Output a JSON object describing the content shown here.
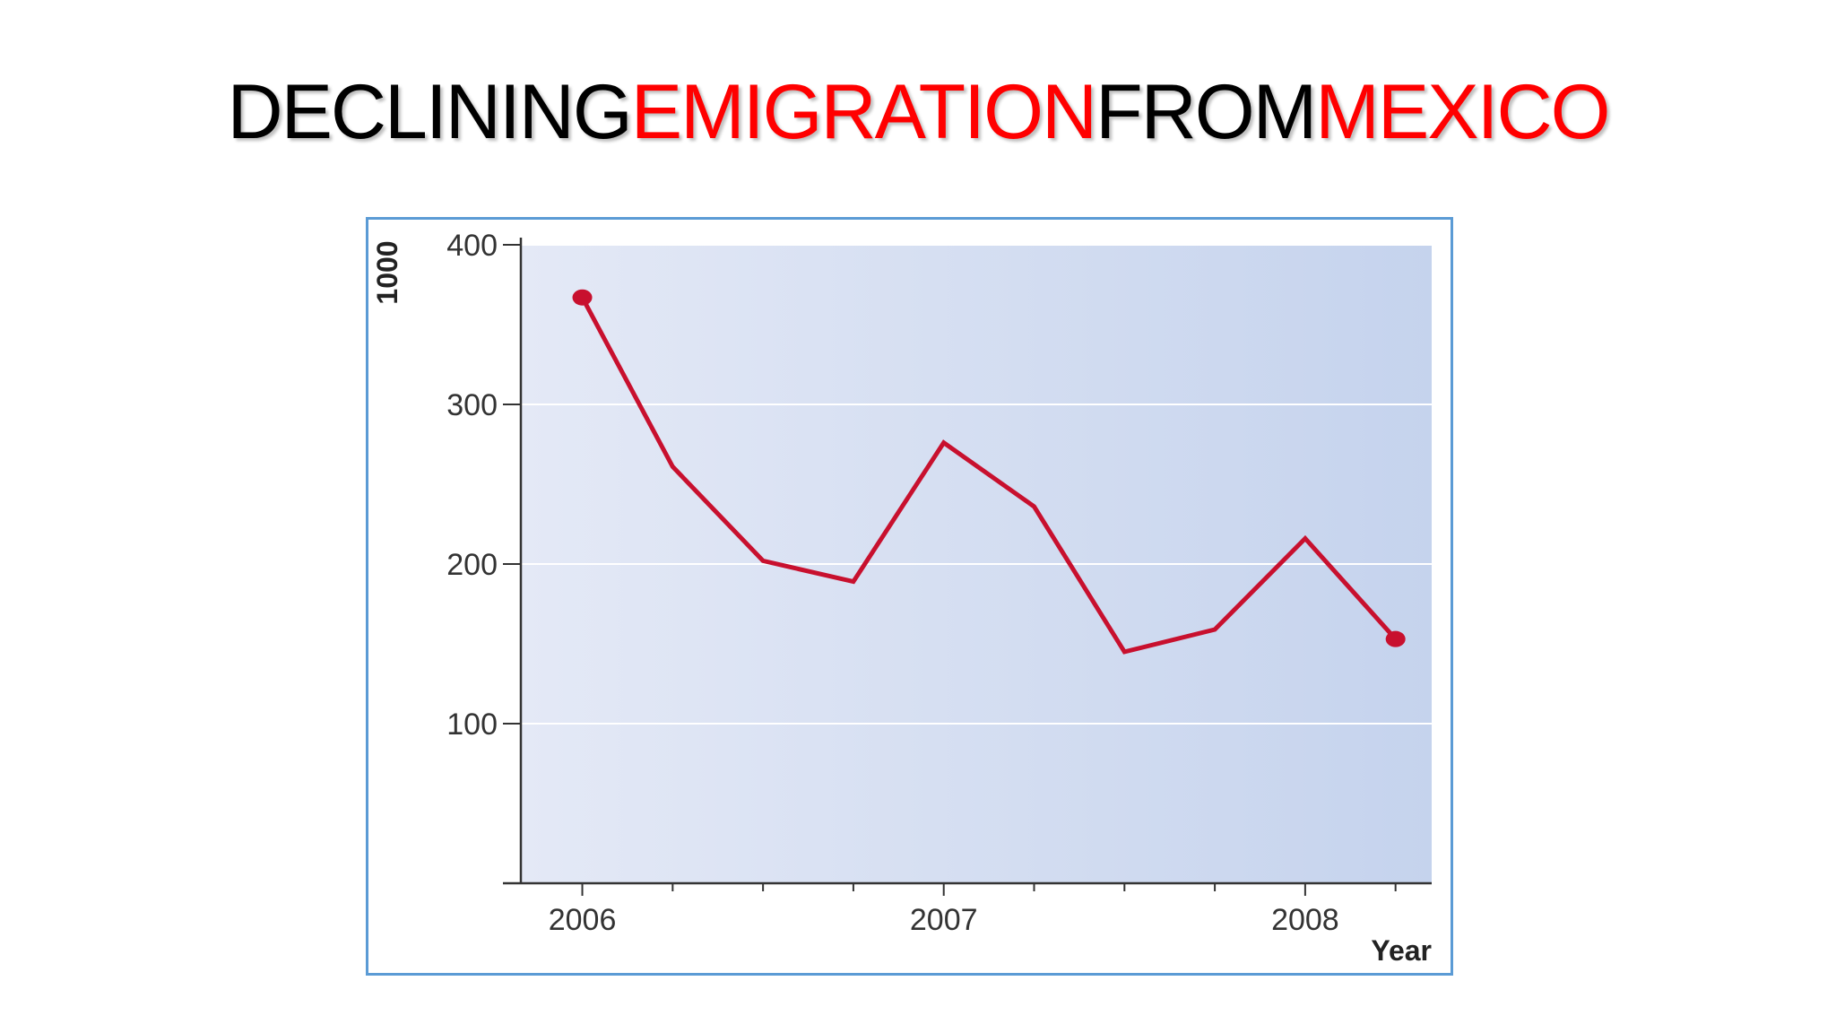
{
  "slide": {
    "title_parts": [
      {
        "text": "DECLINING",
        "color": "#000000"
      },
      {
        "text": "EMIGRATION",
        "color": "#ff0000"
      },
      {
        "text": "FROM",
        "color": "#000000"
      },
      {
        "text": "MEXICO",
        "color": "#ff0000"
      }
    ]
  },
  "chart_data": {
    "type": "line",
    "title": "",
    "xlabel": "Year",
    "ylabel": "1000",
    "x_tick_labels": [
      "2006",
      "2007",
      "2008"
    ],
    "x_ticks": [
      2006,
      2007,
      2008
    ],
    "xlim": [
      2005.83,
      2008.35
    ],
    "ylim": [
      0,
      400
    ],
    "y_ticks": [
      100,
      200,
      300,
      400
    ],
    "y_tick_labels": [
      "100",
      "200",
      "300",
      "400"
    ],
    "grid": true,
    "series": [
      {
        "color": "#c8102e",
        "x": [
          2006.0,
          2006.25,
          2006.5,
          2006.75,
          2007.0,
          2007.25,
          2007.5,
          2007.75,
          2008.0,
          2008.25
        ],
        "y": [
          367,
          261,
          202,
          189,
          276,
          236,
          145,
          159,
          216,
          153
        ]
      }
    ],
    "plot_background": [
      "#e4e9f6",
      "#c5d3ed"
    ],
    "legend": "none"
  }
}
